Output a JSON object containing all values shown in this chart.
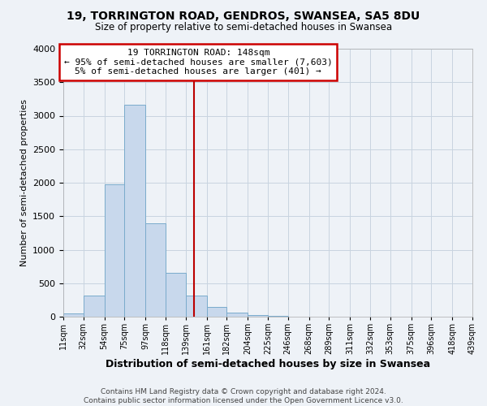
{
  "title": "19, TORRINGTON ROAD, GENDROS, SWANSEA, SA5 8DU",
  "subtitle": "Size of property relative to semi-detached houses in Swansea",
  "xlabel": "Distribution of semi-detached houses by size in Swansea",
  "ylabel": "Number of semi-detached properties",
  "bar_color": "#c8d8ec",
  "bar_edge_color": "#7aabcc",
  "grid_color": "#c8d4e0",
  "background_color": "#eef2f7",
  "plot_bg_color": "#eef2f7",
  "vline_x": 148,
  "vline_color": "#bb0000",
  "annotation_title": "19 TORRINGTON ROAD: 148sqm",
  "annotation_line1": "← 95% of semi-detached houses are smaller (7,603)",
  "annotation_line2": "5% of semi-detached houses are larger (401) →",
  "annotation_box_color": "#ffffff",
  "annotation_border_color": "#cc0000",
  "bin_edges": [
    11,
    32,
    54,
    75,
    97,
    118,
    139,
    161,
    182,
    204,
    225,
    246,
    268,
    289,
    311,
    332,
    353,
    375,
    396,
    418,
    439
  ],
  "bin_heights": [
    50,
    320,
    1980,
    3160,
    1400,
    650,
    310,
    140,
    60,
    30,
    10,
    0,
    0,
    0,
    0,
    0,
    0,
    0,
    0,
    0
  ],
  "ylim": [
    0,
    4000
  ],
  "yticks": [
    0,
    500,
    1000,
    1500,
    2000,
    2500,
    3000,
    3500,
    4000
  ],
  "footer_line1": "Contains HM Land Registry data © Crown copyright and database right 2024.",
  "footer_line2": "Contains public sector information licensed under the Open Government Licence v3.0."
}
